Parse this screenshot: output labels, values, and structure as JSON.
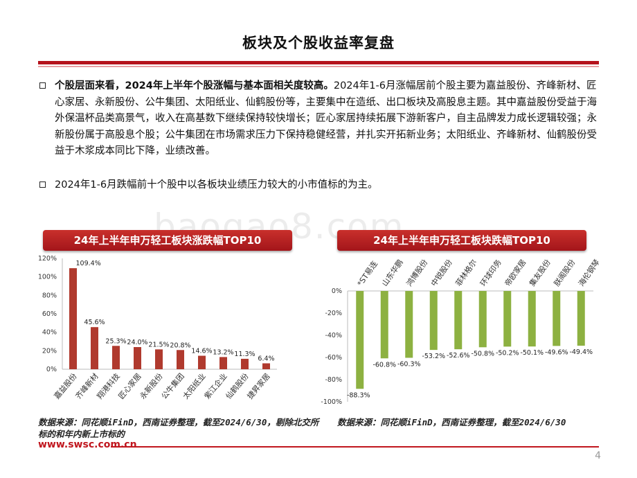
{
  "page": {
    "title": "板块及个股收益率复盘",
    "bullets": [
      {
        "bold": "个股层面来看，2024年上半年个股涨幅与基本面相关度较高。",
        "text": "2024年1-6月涨幅居前个股主要为嘉益股份、齐峰新材、匠心家居、永新股份、公牛集团、太阳纸业、仙鹤股份等，主要集中在造纸、出口板块及高股息主题。其中嘉益股份受益于海外保温杯品类高景气，收入在高基数下继续保持较快增长；匠心家居持续拓展下游新客户，自主品牌发力成长逻辑较强；永新股份属于高股息个股；公牛集团在市场需求压力下保持稳健经营，并扎实开拓新业务；太阳纸业、齐峰新材、仙鹤股份受益于木浆成本同比下降，业绩改善。"
      },
      {
        "bold": "",
        "text": "2024年1-6月跌幅前十个股中以各板块业绩压力较大的小市值标的为主。"
      }
    ],
    "watermark": "baogao8.com",
    "footer_url": "www.swsc.com.cn",
    "page_number": "4"
  },
  "colors": {
    "accent": "#b5121b",
    "bar_up": "#b03a2e",
    "bar_down": "#8db141"
  },
  "chart_data": [
    {
      "type": "bar",
      "title": "24年上半年申万轻工板块涨跌幅TOP10",
      "categories": [
        "嘉益股份",
        "齐峰新材",
        "翔港科技",
        "匠心家居",
        "永新股份",
        "公牛集团",
        "太阳纸业",
        "紫江企业",
        "仙鹤股份",
        "捷昇家居"
      ],
      "values": [
        109.4,
        45.6,
        25.3,
        24.0,
        21.5,
        20.8,
        14.6,
        13.2,
        11.3,
        6.4
      ],
      "value_labels": [
        "109.4%",
        "45.6%",
        "25.3%",
        "24.0%",
        "21.5%",
        "20.8%",
        "14.6%",
        "13.2%",
        "11.3%",
        "6.4%"
      ],
      "ylim": [
        0,
        120
      ],
      "yticks": [
        "0%",
        "20%",
        "40%",
        "60%",
        "80%",
        "100%",
        "120%"
      ],
      "source": "数据来源：同花顺iFinD，西南证券整理，截至2024/6/30，剔除北交所标的和年内新上市标的"
    },
    {
      "type": "bar",
      "title": "24年上半年申万轻工板块跌幅TOP10",
      "categories": [
        "*ST易连",
        "山东华鹏",
        "鸿博股份",
        "中锐股份",
        "菲林格尔",
        "环球印务",
        "帝欧家居",
        "集友股份",
        "朕阁股份",
        "海伦钢琴"
      ],
      "values": [
        -88.3,
        -60.8,
        -60.3,
        -53.2,
        -52.6,
        -50.8,
        -50.2,
        -50.1,
        -49.6,
        -49.4
      ],
      "value_labels": [
        "-88.3%",
        "-60.8%",
        "-60.3%",
        "-53.2%",
        "-52.6%",
        "-50.8%",
        "-50.2%",
        "-50.1%",
        "-49.6%",
        "-49.4%"
      ],
      "ylim": [
        -100,
        0
      ],
      "yticks": [
        "0%",
        "-20%",
        "-40%",
        "-60%",
        "-80%",
        "-100%"
      ],
      "source": "数据来源：同花顺iFinD，西南证券整理，截至2024/6/30"
    }
  ]
}
